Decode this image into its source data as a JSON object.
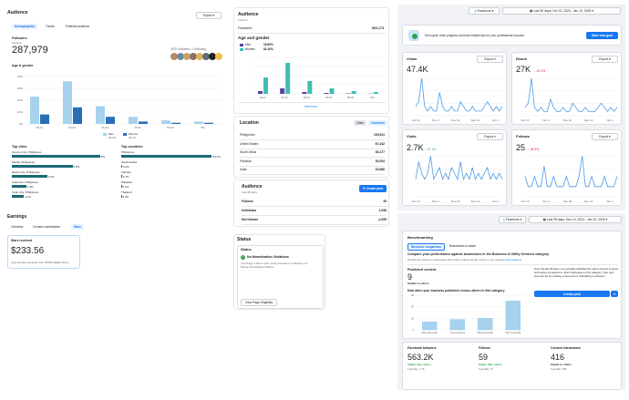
{
  "col1": {
    "title": "Audience",
    "export": "Export",
    "tabs": [
      "Demographics",
      "Trends",
      "Potential audience"
    ],
    "followers_label": "Followers",
    "followers_sub": "Lifetime",
    "followers_value": "287,979",
    "followers_following": "287K followers • 2 following",
    "age_gender_title": "Age & gender",
    "legend_men": "Men",
    "legend_men_pct": "84.9%",
    "legend_women": "Women",
    "legend_women_pct": "15.1%",
    "chart_data": {
      "type": "bar",
      "categories": [
        "18-24",
        "25-34",
        "35-44",
        "45-54",
        "55-64",
        "65+"
      ],
      "series": [
        {
          "name": "Men",
          "values": [
            23,
            36,
            15,
            6,
            3,
            2
          ]
        },
        {
          "name": "Women",
          "values": [
            8,
            14,
            6,
            2,
            1,
            1
          ]
        }
      ],
      "ylim": [
        0,
        40
      ],
      "yticks": [
        "0%",
        "10%",
        "20%",
        "30%",
        "40%"
      ]
    },
    "top_cities_title": "Top cities",
    "top_cities": [
      {
        "name": "Quezon City, Philippines",
        "pct": "8%",
        "value": 8
      },
      {
        "name": "Manila, Philippines",
        "pct": "5.5%",
        "value": 5.5
      },
      {
        "name": "Davao City, Philippines",
        "pct": "3.2%",
        "value": 3.2
      },
      {
        "name": "Caloocan, Philippines",
        "pct": "1.3%",
        "value": 1.3
      },
      {
        "name": "Cebu City, Philippines",
        "pct": "1.1%",
        "value": 1.1
      }
    ],
    "top_countries_title": "Top countries",
    "top_countries": [
      {
        "name": "Philippines",
        "pct": "94.7%",
        "value": 94.7
      },
      {
        "name": "Saudi Arabia",
        "pct": "0.9%",
        "value": 0.9
      },
      {
        "name": "Vietnam",
        "pct": "0.7%",
        "value": 0.7
      },
      {
        "name": "Malaysia",
        "pct": "0.4%",
        "value": 0.4
      },
      {
        "name": "Thailand",
        "pct": "0.3%",
        "value": 0.3
      }
    ],
    "earnings_title": "Earnings",
    "earnings_tabs": [
      "Overview",
      "Content monetization",
      "Stars"
    ],
    "stars_received": "Stars received",
    "stars_value": "$233.56",
    "stars_sub": "Approximate earnings from 23356 eligible Stars"
  },
  "col2": {
    "title": "Audience",
    "sub": "Lifetime",
    "followers_label": "Followers",
    "followers_value": "563,173",
    "age_gender_title": "Age and gender",
    "men_label": "Men",
    "men_pct": "18.60%",
    "women_label": "Women",
    "women_pct": "81.40%",
    "chart_data": {
      "type": "bar",
      "categories": [
        "18-24",
        "25-34",
        "35-44",
        "45-54",
        "55-64",
        "65+"
      ],
      "series": [
        {
          "name": "Men",
          "values": [
            3,
            6,
            2,
            1,
            0.5,
            0.3
          ]
        },
        {
          "name": "Women",
          "values": [
            18,
            34,
            14,
            6,
            3,
            2
          ]
        }
      ],
      "ylim": [
        0,
        40
      ]
    },
    "see_more": "See more",
    "location_title": "Location",
    "location_tabs": [
      "Cities",
      "Countries"
    ],
    "countries": [
      {
        "name": "Philippines",
        "value": "165,911"
      },
      {
        "name": "United States",
        "value": "87,442"
      },
      {
        "name": "South Africa",
        "value": "38,177"
      },
      {
        "name": "Pakistan",
        "value": "30,054"
      },
      {
        "name": "India",
        "value": "23,886"
      }
    ],
    "audience2_title": "Audience",
    "audience2_sub": "Last 28 days",
    "create_post": "Create post",
    "audience2_rows": [
      {
        "name": "Follows",
        "value": "39"
      },
      {
        "name": "Unfollows",
        "value": "1,098"
      },
      {
        "name": "Net follows",
        "value": "-1,059"
      }
    ],
    "status_title": "Status",
    "status_header": "Status",
    "status_value": "No Monetization Violations",
    "status_desc": "Your Page is able to earn money because it is following our Partner Monetization Policies.",
    "status_button": "View Page Eligibility"
  },
  "col3": {
    "facebook": "Facebook",
    "date_range": "Last 30 days: Oct 13, 2024 - Jan 10, 2025",
    "goal_text": "Set a goal, track progress and learn helpful tips for your professional success.",
    "goal_button": "Start new goal",
    "views_title": "Views",
    "views_value": "47.4K",
    "reach_title": "Reach",
    "reach_value": "27K",
    "reach_change": "↓ 42.3%",
    "visits_title": "Visits",
    "visits_value": "2.7K",
    "visits_change": "↑ 37.1%",
    "follows_title": "Follows",
    "follows_value": "25",
    "follows_change": "↓ 26.5%",
    "export": "Export",
    "x_ticks": [
      "Oct 13",
      "Nov 2",
      "Nov 22",
      "Dec 12",
      "Jan 1"
    ],
    "views_series": [
      2,
      3,
      8,
      2,
      1,
      2,
      1,
      1,
      5,
      2,
      1,
      1,
      2,
      1,
      1,
      3,
      2,
      1,
      1,
      2,
      1,
      1,
      1,
      2,
      3,
      2,
      1,
      2,
      1,
      2
    ],
    "reach_series": [
      2,
      3,
      9,
      2,
      1,
      2,
      1,
      1,
      4,
      2,
      1,
      1,
      2,
      1,
      1,
      3,
      2,
      1,
      1,
      2,
      1,
      1,
      1,
      2,
      3,
      2,
      1,
      2,
      1,
      2
    ],
    "visits_series": [
      3,
      6,
      4,
      3,
      4,
      7,
      3,
      4,
      5,
      3,
      4,
      3,
      5,
      4,
      3,
      6,
      3,
      4,
      3,
      5,
      3,
      4,
      3,
      4,
      5,
      3,
      4,
      3,
      4,
      3
    ],
    "follows_series": [
      2,
      1,
      1,
      2,
      1,
      1,
      3,
      1,
      1,
      2,
      1,
      1,
      1,
      2,
      1,
      1,
      1,
      2,
      4,
      1,
      1,
      2,
      1,
      1,
      1,
      2,
      1,
      1,
      1,
      2
    ],
    "date_range2": "Last 28 days: Dec 14, 2024 - Jan 10, 2025",
    "benchmarking_title": "Benchmarking",
    "bench_tabs": [
      "Business comparison",
      "Businesses to watch"
    ],
    "bench_heading": "Compare your performance against businesses in the Business & Utility Services category",
    "bench_sub": "Results are based on businesses with similar organic 28-day reach in your category.",
    "edit_category": "Edit category",
    "published_content": "Published content",
    "published_value": "9",
    "published_sub": "Similar to others",
    "how_often": "How often your business published versus others in this category",
    "chart_data": {
      "type": "bar",
      "categories": [
        "25th percentile",
        "Your business",
        "50th percentile",
        "75th percentile"
      ],
      "values": [
        7,
        9,
        10,
        25
      ],
      "ylim": [
        0,
        30
      ],
      "yticks": [
        "0",
        "10",
        "20",
        "30"
      ]
    },
    "tip_text": "Over the last 28 days, you typically published the same amount of posts and stories compared to other businesses in this category. Your next step can be by creating a new post or scheduling in advance.",
    "create_post": "Create post",
    "fb_followers_title": "Facebook followers",
    "fb_followers_value": "563.2K",
    "fb_followers_sub": "Higher than others",
    "fb_followers_typ": "Typically: 1.7K",
    "follows_title2": "Follows",
    "follows_value2": "59",
    "follows_sub2": "Higher than others",
    "follows_typ2": "Typically: 17",
    "ci_title": "Content interactions",
    "ci_value": "416",
    "ci_sub": "Similar to others",
    "ci_typ": "Typically: 386"
  }
}
